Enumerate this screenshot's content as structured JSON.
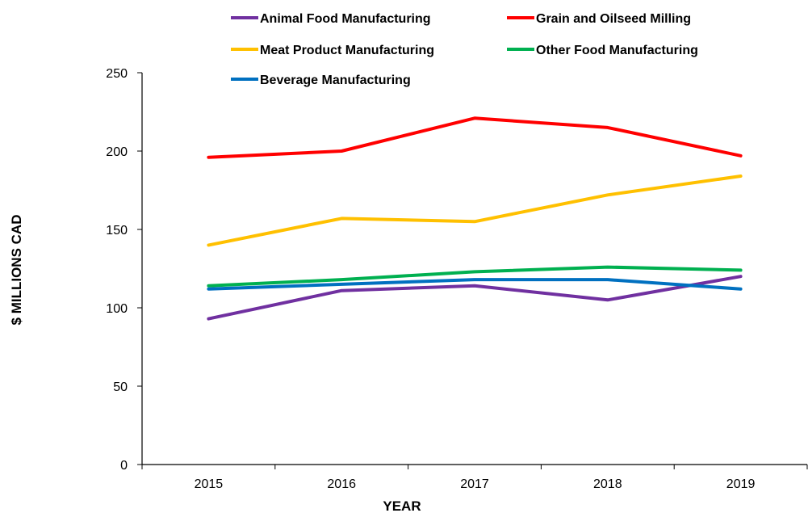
{
  "chart_data": {
    "type": "line",
    "title": "",
    "xlabel": "YEAR",
    "ylabel": "$ MILLIONS CAD",
    "categories": [
      "2015",
      "2016",
      "2017",
      "2018",
      "2019"
    ],
    "ylim": [
      0,
      250
    ],
    "yticks": [
      0,
      50,
      100,
      150,
      200,
      250
    ],
    "grid": false,
    "legend_position": "top",
    "series": [
      {
        "name": "Animal Food Manufacturing",
        "color": "#7030A0",
        "values": [
          93,
          111,
          114,
          105,
          120
        ]
      },
      {
        "name": "Grain and Oilseed Milling",
        "color": "#FF0000",
        "values": [
          196,
          200,
          221,
          215,
          197
        ]
      },
      {
        "name": "Meat Product Manufacturing",
        "color": "#FFC000",
        "values": [
          140,
          157,
          155,
          172,
          184
        ]
      },
      {
        "name": "Other Food Manufacturing",
        "color": "#00B050",
        "values": [
          114,
          118,
          123,
          126,
          124
        ]
      },
      {
        "name": "Beverage Manufacturing",
        "color": "#0070C0",
        "values": [
          112,
          115,
          118,
          118,
          112
        ]
      }
    ]
  }
}
